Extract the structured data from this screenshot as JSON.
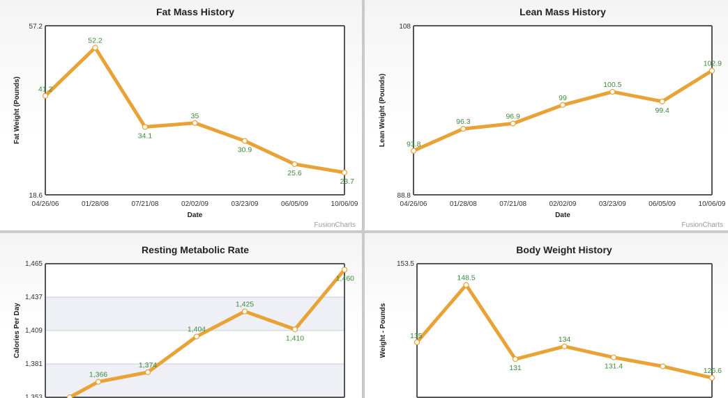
{
  "colors": {
    "line": "#E8A236",
    "point_fill": "#FFFFFF",
    "label": "#3D8C3D",
    "band": "#EEF0F6"
  },
  "credit": "FusionCharts",
  "chart_data": [
    {
      "type": "line",
      "title": "Fat Mass History",
      "xlabel": "Date",
      "ylabel": "Fat Weight (Pounds)",
      "categories": [
        "04/26/06",
        "01/28/08",
        "07/21/08",
        "02/02/09",
        "03/23/09",
        "06/05/09",
        "10/06/09"
      ],
      "values": [
        41.2,
        52.2,
        34.1,
        35,
        30.9,
        25.6,
        23.7
      ],
      "value_labels": [
        "41.2",
        "52.2",
        "34.1",
        "35",
        "30.9",
        "25.6",
        "23.7"
      ],
      "ylim": [
        18.6,
        57.2
      ],
      "yticks": [
        "18.6",
        "57.2"
      ],
      "show_credit": true,
      "grid": false
    },
    {
      "type": "line",
      "title": "Lean Mass History",
      "xlabel": "Date",
      "ylabel": "Lean Weight (Pounds)",
      "categories": [
        "04/26/06",
        "01/28/08",
        "07/21/08",
        "02/02/09",
        "03/23/09",
        "06/05/09",
        "10/06/09"
      ],
      "values": [
        93.8,
        96.3,
        96.9,
        99,
        100.5,
        99.4,
        102.9
      ],
      "value_labels": [
        "93.8",
        "96.3",
        "96.9",
        "99",
        "100.5",
        "99.4",
        "102.9"
      ],
      "ylim": [
        88.8,
        108
      ],
      "yticks": [
        "88.8",
        "108"
      ],
      "show_credit": true,
      "grid": false
    },
    {
      "type": "line",
      "title": "Resting Metabolic Rate",
      "xlabel": "",
      "ylabel": "Calories Per Day",
      "categories": [
        "",
        "",
        "",
        "",
        "",
        "",
        ""
      ],
      "values": [
        1353,
        1366,
        1374,
        1404,
        1425,
        1410,
        1460
      ],
      "value_labels": [
        "",
        "1,366",
        "1,374",
        "1,404",
        "1,425",
        "1,410",
        "1,460"
      ],
      "ylim": [
        1353,
        1465
      ],
      "yticks": [
        "1,465",
        "1,437",
        "1,409",
        "1,381",
        "1,353"
      ],
      "ytick_values": [
        1465,
        1437,
        1409,
        1381,
        1353
      ],
      "show_credit": false,
      "grid": true
    },
    {
      "type": "line",
      "title": "Body Weight History",
      "xlabel": "",
      "ylabel": "Weight - Pounds",
      "categories": [
        "",
        "",
        "",
        "",
        "",
        "",
        ""
      ],
      "values": [
        135,
        148.5,
        131,
        134,
        131.4,
        129.3,
        126.6
      ],
      "value_labels": [
        "135",
        "148.5",
        "131",
        "134",
        "131.4",
        "",
        "126.6"
      ],
      "ylim": [
        122,
        153.5
      ],
      "yticks": [
        "153.5"
      ],
      "ytick_values": [
        153.5
      ],
      "show_credit": false,
      "grid": false
    }
  ]
}
